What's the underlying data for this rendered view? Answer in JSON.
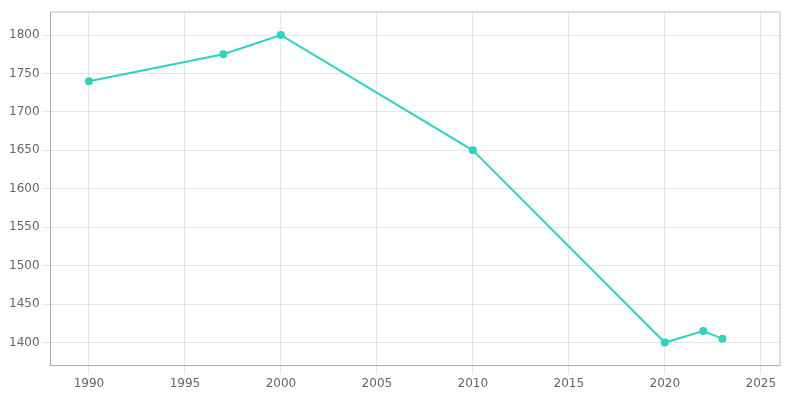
{
  "chart_data": {
    "type": "line",
    "x": [
      1990,
      1997,
      2000,
      2010,
      2020,
      2022,
      2023
    ],
    "values": [
      1740,
      1775,
      1800,
      1650,
      1400,
      1415,
      1405
    ],
    "color": "#2dd4bf",
    "marker": "circle",
    "xlim": [
      1988,
      2026
    ],
    "ylim": [
      1370,
      1830
    ],
    "xticks": [
      1990,
      1995,
      2000,
      2005,
      2010,
      2015,
      2020,
      2025
    ],
    "yticks": [
      1400,
      1450,
      1500,
      1550,
      1600,
      1650,
      1700,
      1750,
      1800
    ],
    "grid": true
  }
}
